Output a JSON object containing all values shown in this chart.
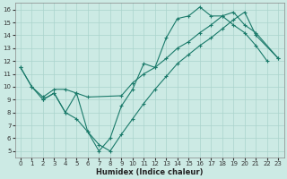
{
  "xlabel": "Humidex (Indice chaleur)",
  "background_color": "#cceae4",
  "grid_color": "#aad4cc",
  "line_color": "#1a7a6a",
  "xlim": [
    -0.5,
    23.5
  ],
  "ylim": [
    4.5,
    16.5
  ],
  "xticks": [
    0,
    1,
    2,
    3,
    4,
    5,
    6,
    7,
    8,
    9,
    10,
    11,
    12,
    13,
    14,
    15,
    16,
    17,
    18,
    19,
    20,
    21,
    22,
    23
  ],
  "yticks": [
    5,
    6,
    7,
    8,
    9,
    10,
    11,
    12,
    13,
    14,
    15,
    16
  ],
  "line1_x": [
    0,
    1,
    2,
    3,
    4,
    5,
    6,
    7,
    8,
    9,
    10,
    11,
    12,
    13,
    14,
    15,
    16,
    17,
    18,
    19,
    20,
    21,
    22
  ],
  "line1_y": [
    11.5,
    10.0,
    9.0,
    9.5,
    8.0,
    9.5,
    6.5,
    5.0,
    6.0,
    8.5,
    9.8,
    11.8,
    11.5,
    13.8,
    15.3,
    15.5,
    16.2,
    15.5,
    15.5,
    14.8,
    14.2,
    13.2,
    12.0
  ],
  "line2_x": [
    0,
    1,
    2,
    3,
    4,
    5,
    6,
    9,
    10,
    11,
    12,
    13,
    14,
    15,
    16,
    17,
    18,
    19,
    20,
    21,
    23
  ],
  "line2_y": [
    11.5,
    10.0,
    9.2,
    9.8,
    9.8,
    9.5,
    9.2,
    9.3,
    10.3,
    11.0,
    11.5,
    12.2,
    13.0,
    13.5,
    14.2,
    14.8,
    15.5,
    15.8,
    14.8,
    14.2,
    12.2
  ],
  "line3_x": [
    2,
    3,
    4,
    5,
    6,
    7,
    8,
    9,
    10,
    11,
    12,
    13,
    14,
    15,
    16,
    17,
    18,
    19,
    20,
    21,
    23
  ],
  "line3_y": [
    9.0,
    9.5,
    8.0,
    7.5,
    6.5,
    5.5,
    5.0,
    6.3,
    7.5,
    8.7,
    9.8,
    10.8,
    11.8,
    12.5,
    13.2,
    13.8,
    14.5,
    15.2,
    15.8,
    14.0,
    12.2
  ]
}
